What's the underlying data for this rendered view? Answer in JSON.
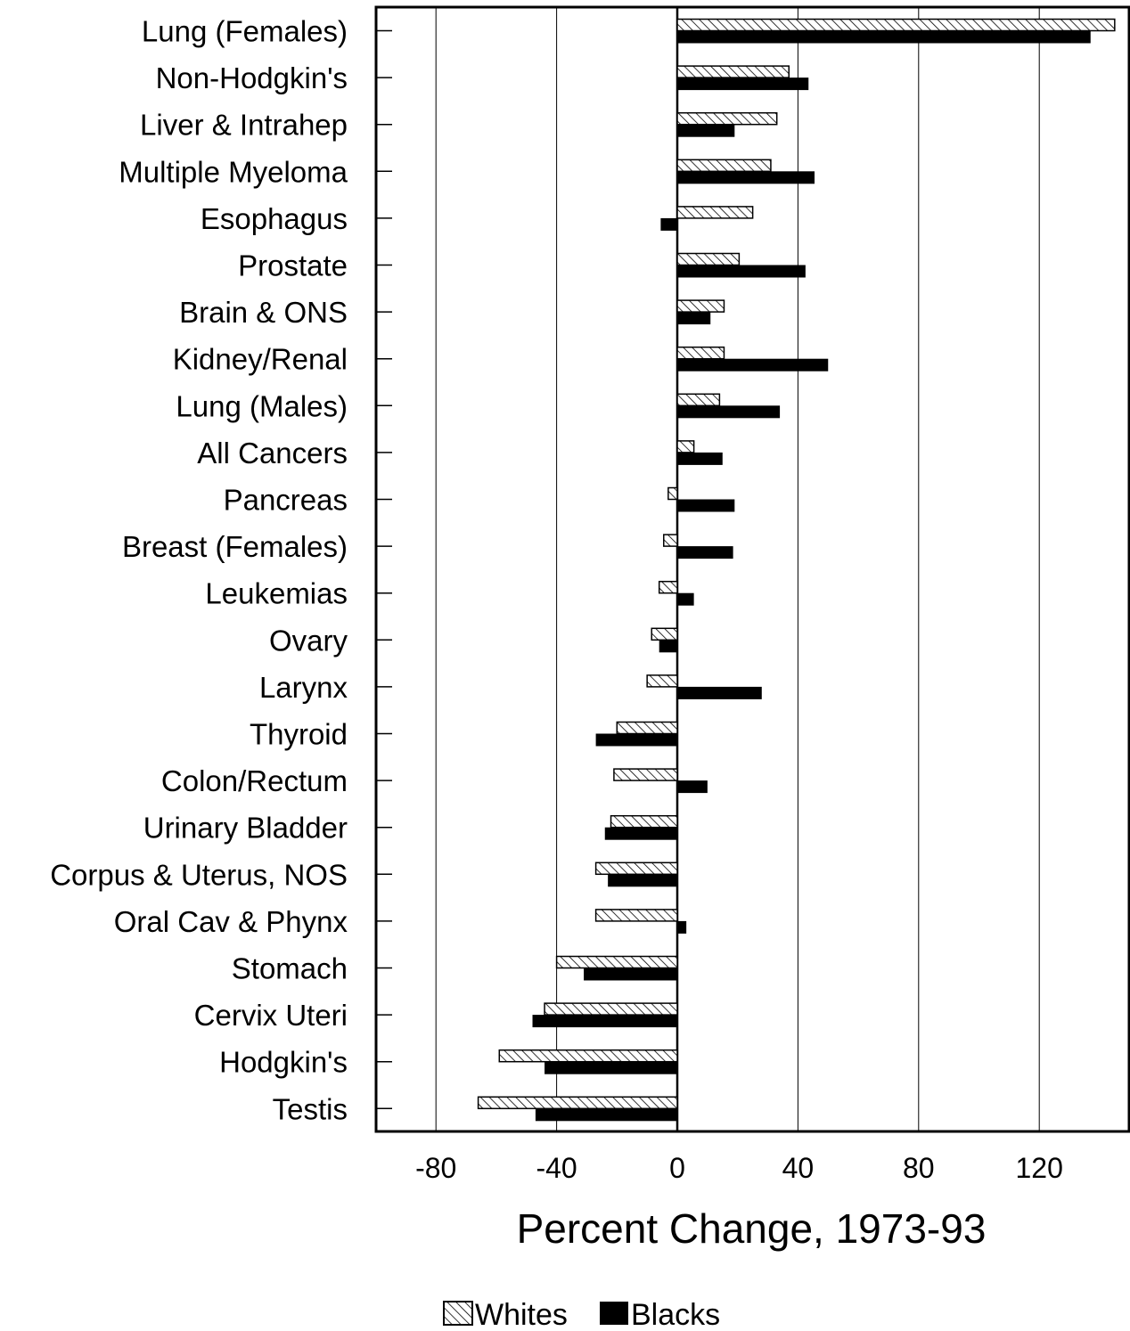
{
  "chart_data": {
    "type": "bar",
    "orientation": "horizontal",
    "xlabel": "Percent Change, 1973-93",
    "ylabel": "",
    "xlim": [
      -100,
      150
    ],
    "xticks": [
      -80,
      -40,
      0,
      40,
      80,
      120
    ],
    "xtick_labels": [
      "-80",
      "-40",
      "0",
      "40",
      "80",
      "120"
    ],
    "grid": "vertical lines at x ticks",
    "legend_position": "bottom-center",
    "categories": [
      "Lung (Females)",
      "Non-Hodgkin's",
      "Liver & Intrahep",
      "Multiple Myeloma",
      "Esophagus",
      "Prostate",
      "Brain & ONS",
      "Kidney/Renal",
      "Lung (Males)",
      "All Cancers",
      "Pancreas",
      "Breast (Females)",
      "Leukemias",
      "Ovary",
      "Larynx",
      "Thyroid",
      "Colon/Rectum",
      "Urinary Bladder",
      "Corpus & Uterus, NOS",
      "Oral Cav & Phynx",
      "Stomach",
      "Cervix Uteri",
      "Hodgkin's",
      "Testis"
    ],
    "series": [
      {
        "name": "Whites",
        "fill": "hatched",
        "values": [
          145,
          37,
          33,
          31,
          25,
          20.5,
          15.5,
          15.5,
          14,
          5.5,
          -3,
          -4.5,
          -6,
          -8.5,
          -10,
          -20,
          -21,
          -22,
          -27,
          -27,
          -40,
          -44,
          -59,
          -66
        ]
      },
      {
        "name": "Blacks",
        "fill": "solid",
        "values": [
          137,
          43.5,
          19,
          45.5,
          -5.5,
          42.5,
          11,
          50,
          34,
          15,
          19,
          18.5,
          5.5,
          -6,
          28,
          -27,
          10,
          -24,
          -23,
          3,
          -31,
          -48,
          -44,
          -47
        ]
      }
    ]
  },
  "colors": {
    "bar_solid": "#000000",
    "hatch": "#000000",
    "background": "#ffffff",
    "gridline": "#000000"
  }
}
